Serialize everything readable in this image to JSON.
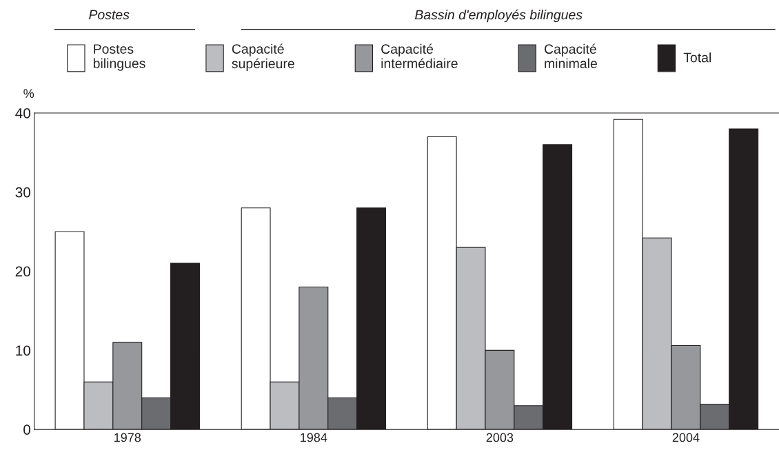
{
  "chart_data": {
    "type": "bar",
    "ylabel": "%",
    "categories": [
      "1978",
      "1984",
      "2003",
      "2004"
    ],
    "series": [
      {
        "name": "Postes\nbilingues",
        "color": "#ffffff",
        "values": [
          25,
          28,
          37,
          39.2
        ]
      },
      {
        "name": "Capacité\nsupérieure",
        "color": "#bcbdc0",
        "values": [
          6,
          6,
          23,
          24.2
        ]
      },
      {
        "name": "Capacité\nintermédiaire",
        "color": "#97989b",
        "values": [
          11,
          18,
          10,
          10.6
        ]
      },
      {
        "name": "Capacité\nminimale",
        "color": "#6b6c70",
        "values": [
          4,
          4,
          3,
          3.2
        ]
      },
      {
        "name": "Total",
        "color": "#231f20",
        "values": [
          21,
          28,
          36,
          38
        ]
      }
    ],
    "ylim": [
      0,
      40
    ],
    "yticks": [
      0,
      10,
      20,
      30,
      40
    ],
    "grid": false,
    "legend": "top",
    "annotations": [
      "Postes",
      "Bassin d'employés bilingues"
    ]
  }
}
